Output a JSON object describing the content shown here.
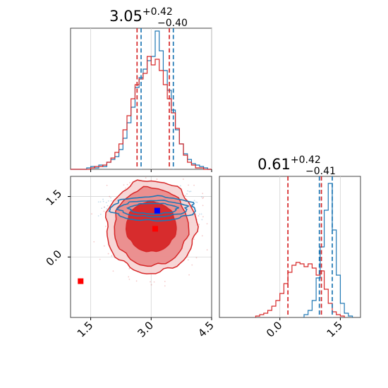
{
  "chart_data": {
    "type": "corner",
    "colors": {
      "model_a": "#1f77b4",
      "model_b": "#d62728"
    },
    "grid": true,
    "parameters": [
      {
        "id": "p1",
        "title_value": "3.05",
        "title_plus": "+0.42",
        "title_minus": "−0.40",
        "range": [
          1.0,
          4.5
        ],
        "ticks": [
          1.5,
          3.0,
          4.5
        ],
        "tick_labels": [
          "1.5",
          "3.0",
          "4.5"
        ],
        "quantiles_red": [
          2.65,
          3.45
        ],
        "quantiles_blue": [
          2.75,
          3.55
        ],
        "hist_blue": {
          "x": [
            1.0,
            1.1,
            1.2,
            1.3,
            1.4,
            1.5,
            1.6,
            1.7,
            1.8,
            1.9,
            2.0,
            2.1,
            2.2,
            2.3,
            2.4,
            2.5,
            2.6,
            2.7,
            2.8,
            2.9,
            3.0,
            3.1,
            3.2,
            3.3,
            3.4,
            3.5,
            3.6,
            3.7,
            3.8,
            3.9,
            4.0,
            4.1,
            4.2,
            4.3,
            4.4
          ],
          "y": [
            0,
            0,
            0,
            0,
            0.01,
            0.02,
            0.01,
            0.03,
            0.02,
            0.05,
            0.07,
            0.09,
            0.14,
            0.22,
            0.33,
            0.44,
            0.58,
            0.65,
            0.71,
            0.77,
            0.8,
            0.98,
            0.84,
            0.7,
            0.56,
            0.42,
            0.28,
            0.18,
            0.11,
            0.07,
            0.04,
            0.03,
            0.02,
            0.01,
            0
          ]
        },
        "hist_red": {
          "x": [
            1.0,
            1.1,
            1.2,
            1.3,
            1.4,
            1.5,
            1.6,
            1.7,
            1.8,
            1.9,
            2.0,
            2.1,
            2.2,
            2.3,
            2.4,
            2.5,
            2.6,
            2.7,
            2.8,
            2.9,
            3.0,
            3.1,
            3.2,
            3.3,
            3.4,
            3.5,
            3.6,
            3.7,
            3.8,
            3.9,
            4.0,
            4.1,
            4.2,
            4.3,
            4.4
          ],
          "y": [
            0,
            0,
            0,
            0,
            0,
            0.01,
            0.02,
            0.02,
            0.03,
            0.05,
            0.08,
            0.12,
            0.18,
            0.28,
            0.38,
            0.5,
            0.6,
            0.64,
            0.68,
            0.8,
            0.74,
            0.78,
            0.7,
            0.6,
            0.5,
            0.4,
            0.29,
            0.18,
            0.1,
            0.05,
            0.03,
            0.01,
            0.01,
            0,
            0
          ]
        }
      },
      {
        "id": "p2",
        "title_value": "0.61",
        "title_plus": "+0.42",
        "title_minus": "−0.41",
        "range": [
          -1.5,
          2.0
        ],
        "ticks": [
          0.0,
          1.5
        ],
        "tick_labels": [
          "0.0",
          "1.5"
        ],
        "quantiles_red": [
          0.2,
          1.03
        ],
        "quantiles_blue": [
          0.98,
          1.3
        ],
        "hist_blue": {
          "x": [
            0.6,
            0.7,
            0.8,
            0.9,
            1.0,
            1.1,
            1.2,
            1.3,
            1.4,
            1.5,
            1.6,
            1.7
          ],
          "y": [
            0.02,
            0.05,
            0.12,
            0.28,
            0.5,
            0.76,
            0.95,
            0.62,
            0.3,
            0.1,
            0.03,
            0.01
          ]
        },
        "hist_red": {
          "x": [
            -0.6,
            -0.5,
            -0.4,
            -0.3,
            -0.2,
            -0.1,
            0.0,
            0.1,
            0.2,
            0.3,
            0.4,
            0.5,
            0.6,
            0.7,
            0.8,
            0.9,
            1.0,
            1.1,
            1.2,
            1.3,
            1.4,
            1.5
          ],
          "y": [
            0.01,
            0.02,
            0.03,
            0.05,
            0.08,
            0.12,
            0.17,
            0.24,
            0.32,
            0.37,
            0.39,
            0.38,
            0.36,
            0.38,
            0.35,
            0.3,
            0.33,
            0.2,
            0.1,
            0.04,
            0.02,
            0.01
          ]
        }
      }
    ],
    "joint": {
      "markers": [
        {
          "series": "model_b",
          "x": 1.25,
          "y": -0.6
        },
        {
          "series": "model_b",
          "x": 3.1,
          "y": 0.7
        },
        {
          "series": "model_a",
          "x": 3.15,
          "y": 1.15
        }
      ],
      "red_contours": [
        {
          "cx": 3.0,
          "cy": 0.75,
          "rx": 1.12,
          "ry": 1.15
        },
        {
          "cx": 3.0,
          "cy": 0.75,
          "rx": 0.92,
          "ry": 0.97
        },
        {
          "cx": 3.0,
          "cy": 0.75,
          "rx": 0.62,
          "ry": 0.62
        }
      ],
      "blue_contours": [
        {
          "cx": 3.05,
          "cy": 1.2,
          "rx": 1.05,
          "ry": 0.3
        },
        {
          "cx": 3.05,
          "cy": 1.2,
          "rx": 0.85,
          "ry": 0.2
        },
        {
          "cx": 3.05,
          "cy": 1.2,
          "rx": 0.6,
          "ry": 0.13
        }
      ]
    }
  }
}
